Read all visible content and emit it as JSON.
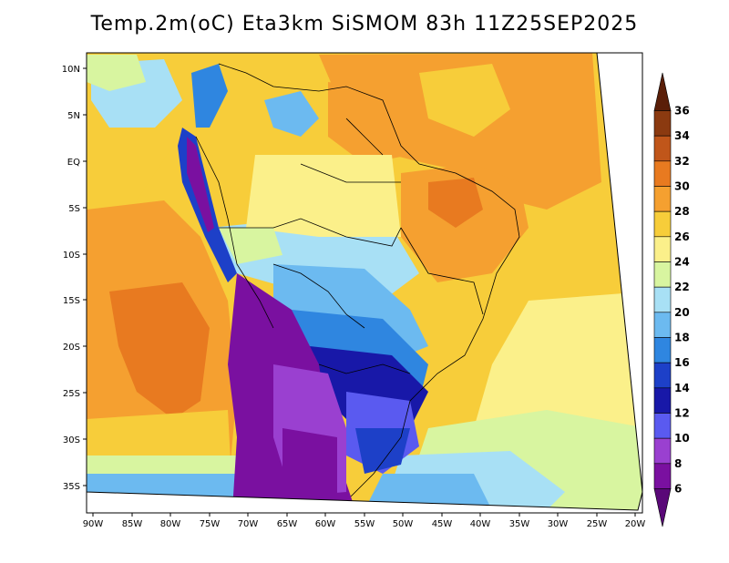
{
  "title": "Temp.2m(oC) Eta3km SiSMOM 83h 11Z25SEP2025",
  "lat_labels": [
    "10N",
    "5N",
    "EQ",
    "5S",
    "10S",
    "15S",
    "20S",
    "25S",
    "30S",
    "35S"
  ],
  "lon_labels": [
    "90W",
    "85W",
    "80W",
    "75W",
    "70W",
    "65W",
    "60W",
    "55W",
    "50W",
    "45W",
    "40W",
    "35W",
    "30W",
    "25W",
    "20W"
  ],
  "colorbar": {
    "levels": [
      "36",
      "34",
      "32",
      "30",
      "28",
      "26",
      "24",
      "22",
      "20",
      "18",
      "16",
      "14",
      "12",
      "10",
      "8",
      "6"
    ],
    "colors": [
      "#5a1e08",
      "#8b3a10",
      "#c0561a",
      "#e87a20",
      "#f5a030",
      "#f7cd3a",
      "#fbf08a",
      "#d8f5a0",
      "#a8e0f5",
      "#6cbaf0",
      "#2f86e0",
      "#1d40c8",
      "#1818a8",
      "#5a5af0",
      "#9a40d0",
      "#7a10a0",
      "#5a0878"
    ]
  }
}
